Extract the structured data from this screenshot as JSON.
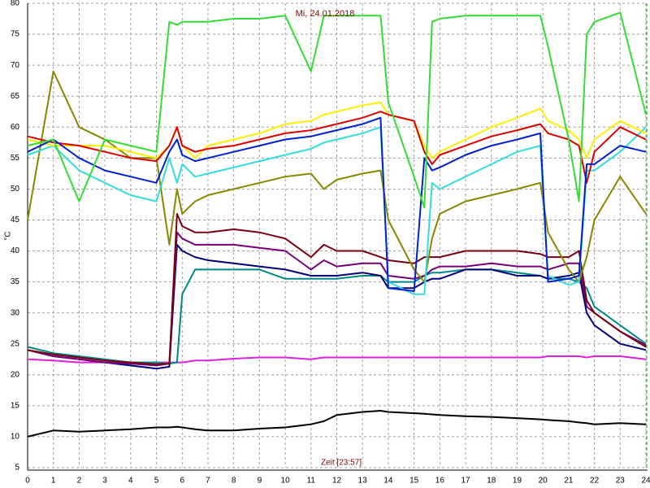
{
  "chart_data": {
    "type": "line",
    "title": "Mi, 24.01.2018",
    "xlabel": "Zeit [23:57]",
    "ylabel": "°C",
    "x": [
      0,
      1,
      2,
      3,
      4,
      5,
      5.5,
      5.8,
      6,
      6.5,
      7,
      8,
      9,
      10,
      11,
      11.5,
      12,
      13,
      13.7,
      14,
      15,
      15.4,
      15.7,
      16,
      17,
      18,
      19,
      19.9,
      20.2,
      21,
      21.4,
      21.7,
      22,
      23,
      24
    ],
    "xlim": [
      0,
      24
    ],
    "xticks": [
      0,
      1,
      2,
      3,
      4,
      5,
      6,
      7,
      8,
      9,
      10,
      11,
      12,
      13,
      14,
      15,
      16,
      17,
      18,
      19,
      20,
      21,
      22,
      23,
      24
    ],
    "ylim": [
      5,
      80
    ],
    "yticks": [
      5,
      10,
      15,
      20,
      25,
      30,
      35,
      40,
      45,
      50,
      55,
      60,
      65,
      70,
      75,
      80
    ],
    "grid": true,
    "series": [
      {
        "color": "#000000",
        "values": [
          10,
          11,
          10.8,
          11,
          11.2,
          11.5,
          11.5,
          11.6,
          11.5,
          11.2,
          11,
          11,
          11.3,
          11.5,
          12,
          12.5,
          13.5,
          14,
          14.2,
          14,
          13.8,
          13.7,
          13.6,
          13.5,
          13.3,
          13.2,
          13,
          12.8,
          12.7,
          12.5,
          12.3,
          12.2,
          12,
          12.2,
          12
        ]
      },
      {
        "color": "#dd22dd",
        "values": [
          22.5,
          22.3,
          22,
          22,
          22,
          22,
          22,
          22,
          22,
          22.3,
          22.3,
          22.6,
          22.8,
          22.8,
          22.5,
          22.8,
          22.8,
          22.8,
          22.8,
          22.8,
          22.8,
          22.8,
          22.8,
          22.8,
          22.8,
          22.8,
          22.8,
          22.8,
          23,
          23,
          23,
          22.8,
          23,
          23,
          22.5
        ]
      },
      {
        "color": "#008888",
        "values": [
          24.5,
          23.5,
          23,
          22.5,
          22,
          22,
          21.8,
          22,
          33,
          37,
          37,
          37,
          37,
          35.5,
          35.5,
          35.5,
          35.5,
          36,
          36,
          35,
          35,
          36,
          36.5,
          36.5,
          37,
          37,
          36.5,
          36,
          35.5,
          35.5,
          35,
          34,
          31,
          28,
          25
        ]
      },
      {
        "color": "#000077",
        "values": [
          24,
          23,
          22.5,
          22,
          21.5,
          21,
          21.3,
          41,
          40,
          39,
          38.5,
          38,
          37.5,
          37,
          36,
          36,
          36,
          36.5,
          36,
          34,
          34,
          35,
          35.5,
          35.5,
          37,
          37,
          36,
          36,
          35.5,
          36,
          36.5,
          30,
          28,
          25,
          24
        ]
      },
      {
        "color": "#770077",
        "values": [
          24,
          23,
          22.5,
          22,
          21.8,
          21.5,
          21.8,
          43,
          42,
          41,
          41,
          41,
          40.5,
          40,
          37,
          38.5,
          37.5,
          38,
          38,
          36,
          35.5,
          36,
          37,
          37.5,
          37.5,
          38,
          37.5,
          37.5,
          37,
          38,
          38,
          31,
          30,
          27,
          24.8
        ]
      },
      {
        "color": "#770011",
        "values": [
          24,
          23.3,
          22.8,
          22.3,
          22,
          21.7,
          21.8,
          46,
          44,
          43,
          43,
          43.5,
          43,
          42,
          39,
          41,
          40,
          40,
          39,
          38.5,
          38,
          39,
          39,
          39,
          40,
          40,
          40,
          39.5,
          39,
          39,
          40,
          32,
          30,
          27,
          24.5
        ]
      },
      {
        "color": "#888800",
        "values": [
          45,
          69,
          60,
          58,
          55,
          55,
          41,
          50,
          46,
          48,
          49,
          50,
          51,
          52,
          52.5,
          50,
          51.5,
          52.5,
          53,
          45,
          37,
          35,
          42,
          46,
          48,
          49,
          50,
          51,
          43,
          37,
          35,
          39,
          45,
          52,
          46
        ]
      },
      {
        "color": "#33dddd",
        "values": [
          55.5,
          57,
          53,
          51,
          49,
          48,
          55,
          51,
          54,
          52,
          52.5,
          53.5,
          54.5,
          55.5,
          56.5,
          57.5,
          58,
          59,
          60,
          35,
          33,
          33,
          51,
          50,
          52,
          54,
          56,
          57,
          36,
          34.5,
          35,
          53,
          53,
          56,
          60
        ]
      },
      {
        "color": "#ffee00",
        "values": [
          58,
          57,
          57,
          57,
          56,
          55,
          57,
          60,
          57,
          55,
          57,
          58,
          59,
          60.5,
          61,
          62,
          62.5,
          63.5,
          64,
          62,
          61,
          57,
          55,
          56,
          58,
          60,
          61.5,
          63,
          61,
          59.5,
          58,
          55,
          58,
          61,
          59
        ]
      },
      {
        "color": "#dd0000",
        "values": [
          58.5,
          57.5,
          57,
          56,
          55,
          54.5,
          57,
          60,
          57,
          56,
          56.5,
          57,
          58,
          59,
          59.5,
          60,
          60.5,
          61.5,
          62.5,
          62,
          61,
          56,
          54,
          55.5,
          57,
          58.5,
          59.5,
          60.5,
          59,
          58,
          57,
          51,
          56,
          60,
          58
        ]
      },
      {
        "color": "#0022cc",
        "values": [
          56,
          58,
          55,
          53,
          52,
          51,
          56,
          58,
          55.5,
          54.5,
          55,
          56,
          57,
          58,
          58.5,
          59,
          59.5,
          60.5,
          61.5,
          34,
          33.5,
          55,
          53,
          53.5,
          55.5,
          57,
          58,
          59,
          35,
          35.5,
          36,
          54,
          54,
          57,
          56
        ]
      },
      {
        "color": "#33dd33",
        "values": [
          57,
          58,
          48,
          58,
          57,
          56,
          77,
          76.5,
          77,
          77,
          77,
          77.5,
          77.5,
          78,
          69,
          78,
          78,
          78,
          78,
          64,
          52,
          47,
          77,
          77.5,
          78,
          78,
          78,
          78,
          73,
          58,
          48,
          75,
          77,
          78.5,
          62
        ]
      }
    ]
  }
}
